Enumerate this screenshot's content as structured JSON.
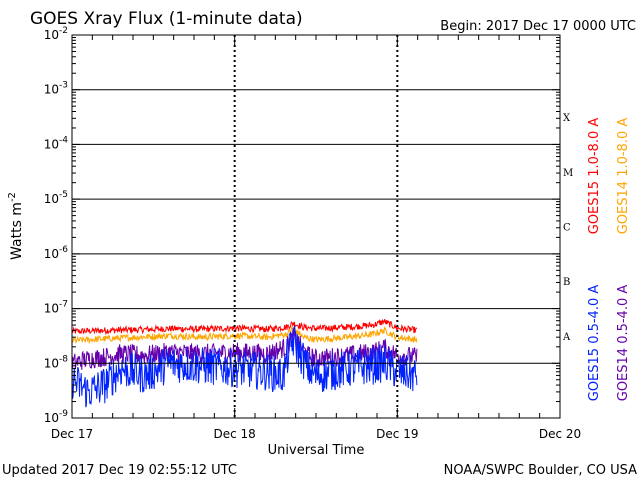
{
  "header": {
    "title": "GOES Xray Flux (1-minute data)",
    "begin": "Begin:  2017 Dec 17 0000 UTC"
  },
  "footer": {
    "updated": "Updated 2017 Dec 19 02:55:12 UTC",
    "credit": "NOAA/SWPC Boulder, CO USA"
  },
  "chart_data": {
    "type": "line",
    "title": "GOES Xray Flux (1-minute data)",
    "xlabel": "Universal Time",
    "ylabel_base": "Watts m",
    "ylabel_sup": "-2",
    "x_ticks": [
      {
        "label": "Dec 17",
        "day": 0
      },
      {
        "label": "Dec 18",
        "day": 1
      },
      {
        "label": "Dec 19",
        "day": 2
      },
      {
        "label": "Dec 20",
        "day": 3
      }
    ],
    "xlim_days": [
      0,
      3
    ],
    "y_scale": "log",
    "ylim": [
      1e-09,
      0.01
    ],
    "y_ticks": [
      {
        "base": "10",
        "exp": "-9",
        "value": 1e-09
      },
      {
        "base": "10",
        "exp": "-8",
        "value": 1e-08
      },
      {
        "base": "10",
        "exp": "-7",
        "value": 1e-07
      },
      {
        "base": "10",
        "exp": "-6",
        "value": 1e-06
      },
      {
        "base": "10",
        "exp": "-5",
        "value": 1e-05
      },
      {
        "base": "10",
        "exp": "-4",
        "value": 0.0001
      },
      {
        "base": "10",
        "exp": "-3",
        "value": 0.001
      },
      {
        "base": "10",
        "exp": "-2",
        "value": 0.01
      }
    ],
    "flare_classes": [
      {
        "label": "A",
        "low": 1e-08,
        "high": 1e-07
      },
      {
        "label": "B",
        "low": 1e-07,
        "high": 1e-06
      },
      {
        "label": "C",
        "low": 1e-06,
        "high": 1e-05
      },
      {
        "label": "M",
        "low": 1e-05,
        "high": 0.0001
      },
      {
        "label": "X",
        "low": 0.0001,
        "high": 0.001
      }
    ],
    "data_end_day": 2.12,
    "series": [
      {
        "name": "GOES15 1.0-8.0 A",
        "color": "#ff0000",
        "x_day": [
          0,
          0.2,
          0.4,
          0.6,
          0.8,
          1.0,
          1.2,
          1.32,
          1.36,
          1.42,
          1.5,
          1.7,
          1.85,
          1.92,
          2.0,
          2.12
        ],
        "y": [
          3.8e-08,
          4e-08,
          4.1e-08,
          4.3e-08,
          4.2e-08,
          4.4e-08,
          4.2e-08,
          4.6e-08,
          5.4e-08,
          4.6e-08,
          4.3e-08,
          4.6e-08,
          5e-08,
          5.8e-08,
          4.4e-08,
          4e-08
        ]
      },
      {
        "name": "GOES14 1.0-8.0 A",
        "color": "#ffa500",
        "x_day": [
          0,
          0.2,
          0.4,
          0.6,
          0.8,
          1.0,
          1.2,
          1.32,
          1.36,
          1.42,
          1.5,
          1.7,
          1.85,
          1.92,
          2.0,
          2.12
        ],
        "y": [
          2.6e-08,
          2.8e-08,
          3e-08,
          3.2e-08,
          3e-08,
          3.2e-08,
          3e-08,
          3.4e-08,
          4.4e-08,
          3e-08,
          2.7e-08,
          3e-08,
          3.4e-08,
          4e-08,
          3e-08,
          2.7e-08
        ]
      },
      {
        "name": "GOES14 0.5-4.0 A",
        "color": "#6600aa",
        "x_day": [
          0,
          0.1,
          0.2,
          0.3,
          0.45,
          0.6,
          0.8,
          1.0,
          1.2,
          1.32,
          1.36,
          1.45,
          1.5,
          1.7,
          1.85,
          1.92,
          2.0,
          2.12
        ],
        "y": [
          1e-08,
          1.2e-08,
          1.3e-08,
          1.5e-08,
          1.4e-08,
          1.6e-08,
          1.5e-08,
          1.6e-08,
          1.5e-08,
          2e-08,
          3e-08,
          1.4e-08,
          1.2e-08,
          1.4e-08,
          1.6e-08,
          1.9e-08,
          1.4e-08,
          1.3e-08
        ]
      },
      {
        "name": "GOES15 0.5-4.0 A",
        "color": "#0022ff",
        "x_day": [
          0,
          0.1,
          0.2,
          0.3,
          0.45,
          0.6,
          0.8,
          1.0,
          1.2,
          1.3,
          1.32,
          1.36,
          1.45,
          1.5,
          1.7,
          1.85,
          1.92,
          2.0,
          2.12
        ],
        "y": [
          5e-09,
          3e-09,
          4e-09,
          8e-09,
          6e-09,
          1e-08,
          9e-09,
          8e-09,
          7e-09,
          6e-09,
          1.2e-08,
          2.6e-08,
          8e-09,
          6e-09,
          8e-09,
          9e-09,
          1e-08,
          7e-09,
          6e-09
        ]
      }
    ],
    "legend_right_outer": [
      "GOES15 1.0-8.0 A",
      "GOES15 0.5-4.0 A"
    ],
    "legend_right_inner": [
      "GOES14 1.0-8.0 A",
      "GOES14 0.5-4.0 A"
    ]
  }
}
